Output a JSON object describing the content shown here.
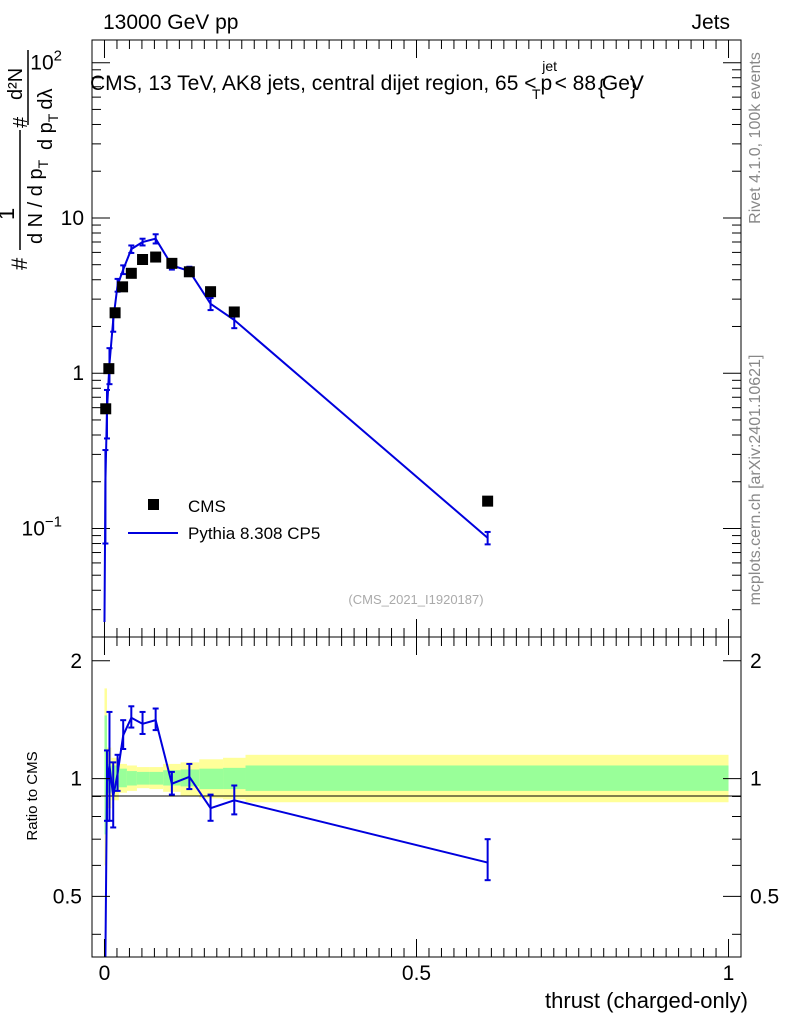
{
  "header": {
    "left": "13000 GeV pp",
    "right": "Jets"
  },
  "side_labels": {
    "rivet": "Rivet 4.1.0,  100k events",
    "mcplots": "mcplots.cern.ch [arXiv:2401.10621]"
  },
  "plot": {
    "title": "CMS, 13 TeV, AK8 jets, central dijet region, 65 < p_T^{jet} < 88 GeV",
    "title_parts": {
      "pre": "CMS, 13 TeV, AK8 jets, central dijet region, 65 <",
      "p": "p",
      "sub": "T",
      "sup": "jet",
      "post": "< 88 GeV"
    },
    "watermark": "(CMS_2021_I1920187)"
  },
  "colors": {
    "data": "#000000",
    "mc": "#0000dd",
    "band_inner": "#99ff99",
    "band_outer": "#ffff99"
  },
  "chart_data": [
    {
      "type": "scatter",
      "role": "main",
      "xlabel": "thrust (charged-only)",
      "ylabel": "1/dN/dpT  d²N/dpT dλ",
      "ylabel_parts": {
        "num1": "#",
        "num2": "1",
        "den": "d N / d p",
        "den_sub": "T",
        "hash": "#",
        "num3": "d²N",
        "den3": "d p",
        "den3_sub": "T",
        "den3_tail": "dλ"
      },
      "xlim": [
        -0.02,
        1.02
      ],
      "ylim": [
        0.02,
        140
      ],
      "yscale": "log",
      "y_ticks": [
        {
          "value": 0.1,
          "label": "10",
          "exp": "−1"
        },
        {
          "value": 1,
          "label": "1",
          "exp": ""
        },
        {
          "value": 10,
          "label": "10",
          "exp": ""
        },
        {
          "value": 100,
          "label": "10",
          "exp": "2"
        }
      ],
      "legend": [
        "CMS",
        "Pythia 8.308 CP5"
      ],
      "legend_position": "bottom-left",
      "series": [
        {
          "name": "CMS",
          "style": "markers",
          "x": [
            0.002,
            0.007,
            0.017,
            0.029,
            0.043,
            0.061,
            0.082,
            0.108,
            0.136,
            0.17,
            0.208,
            0.614
          ],
          "y": [
            0.59,
            1.07,
            2.45,
            3.6,
            4.4,
            5.4,
            5.6,
            5.1,
            4.5,
            3.35,
            2.48,
            0.15
          ]
        },
        {
          "name": "Pythia 8.308 CP5",
          "style": "line",
          "x": [
            0.0,
            0.0015,
            0.004,
            0.008,
            0.014,
            0.021,
            0.03,
            0.043,
            0.061,
            0.082,
            0.108,
            0.136,
            0.17,
            0.208,
            0.614
          ],
          "y": [
            0.025,
            0.2,
            0.58,
            1.15,
            2.2,
            3.7,
            4.65,
            6.3,
            7.0,
            7.35,
            4.95,
            4.55,
            2.8,
            2.2,
            0.087
          ],
          "err": [
            0,
            0.12,
            0.2,
            0.3,
            0.35,
            0.35,
            0.3,
            0.35,
            0.35,
            0.5,
            0.3,
            0.3,
            0.25,
            0.25,
            0.008
          ]
        }
      ]
    },
    {
      "type": "line",
      "role": "ratio",
      "xlabel": "thrust (charged-only)",
      "ylabel": "Ratio to CMS",
      "xlim": [
        -0.02,
        1.02
      ],
      "ylim": [
        0.35,
        2.3
      ],
      "yscale": "log",
      "x_ticks": [
        {
          "value": 0,
          "label": "0"
        },
        {
          "value": 0.5,
          "label": "0.5"
        },
        {
          "value": 1,
          "label": "1"
        }
      ],
      "y_ticks": [
        {
          "value": 0.5,
          "label": "0.5"
        },
        {
          "value": 1,
          "label": "1"
        },
        {
          "value": 2,
          "label": "2"
        }
      ],
      "bands": {
        "edges": [
          0.0,
          0.004,
          0.011,
          0.023,
          0.036,
          0.052,
          0.072,
          0.094,
          0.122,
          0.152,
          0.19,
          0.226,
          1.0
        ],
        "inner_low": [
          0.72,
          0.92,
          0.93,
          0.95,
          0.96,
          0.965,
          0.965,
          0.96,
          0.955,
          0.94,
          0.94,
          0.93
        ],
        "inner_high": [
          1.45,
          1.09,
          1.08,
          1.06,
          1.045,
          1.04,
          1.04,
          1.05,
          1.055,
          1.06,
          1.065,
          1.08
        ],
        "outer_low": [
          0.6,
          0.84,
          0.88,
          0.92,
          0.93,
          0.945,
          0.94,
          0.925,
          0.905,
          0.89,
          0.885,
          0.87
        ],
        "outer_high": [
          1.7,
          1.2,
          1.13,
          1.09,
          1.08,
          1.07,
          1.07,
          1.09,
          1.1,
          1.12,
          1.13,
          1.15
        ]
      },
      "series": [
        {
          "name": "Pythia 8.308 CP5 / CMS",
          "x": [
            0.0015,
            0.004,
            0.008,
            0.014,
            0.021,
            0.03,
            0.043,
            0.061,
            0.082,
            0.108,
            0.136,
            0.17,
            0.208,
            0.614
          ],
          "y": [
            0.33,
            0.98,
            1.08,
            0.9,
            1.03,
            1.29,
            1.43,
            1.38,
            1.41,
            0.97,
            1.01,
            0.84,
            0.88,
            0.61
          ],
          "err_low": [
            0,
            0.2,
            0.3,
            0.15,
            0.1,
            0.1,
            0.08,
            0.08,
            0.08,
            0.06,
            0.07,
            0.06,
            0.07,
            0.06
          ],
          "err_high": [
            0,
            0.2,
            0.4,
            0.2,
            0.12,
            0.12,
            0.1,
            0.1,
            0.1,
            0.07,
            0.08,
            0.07,
            0.08,
            0.09
          ]
        }
      ]
    }
  ]
}
